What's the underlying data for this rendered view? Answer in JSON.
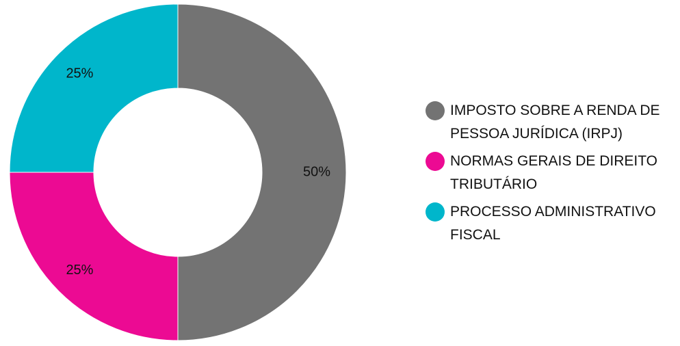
{
  "chart_data": {
    "type": "pie",
    "donut": true,
    "slices": [
      {
        "label": "IMPOSTO SOBRE A RENDA DE PESSOA JURÍDICA (IRPJ)",
        "value": 50,
        "display": "50%",
        "color": "#737373"
      },
      {
        "label": "NORMAS GERAIS DE DIREITO TRIBUTÁRIO",
        "value": 25,
        "display": "25%",
        "color": "#ec0a93"
      },
      {
        "label": "PROCESSO ADMINISTRATIVO FISCAL",
        "value": 25,
        "display": "25%",
        "color": "#00b6cb"
      }
    ],
    "legend_position": "right",
    "start_angle": "12 o'clock, clockwise"
  }
}
